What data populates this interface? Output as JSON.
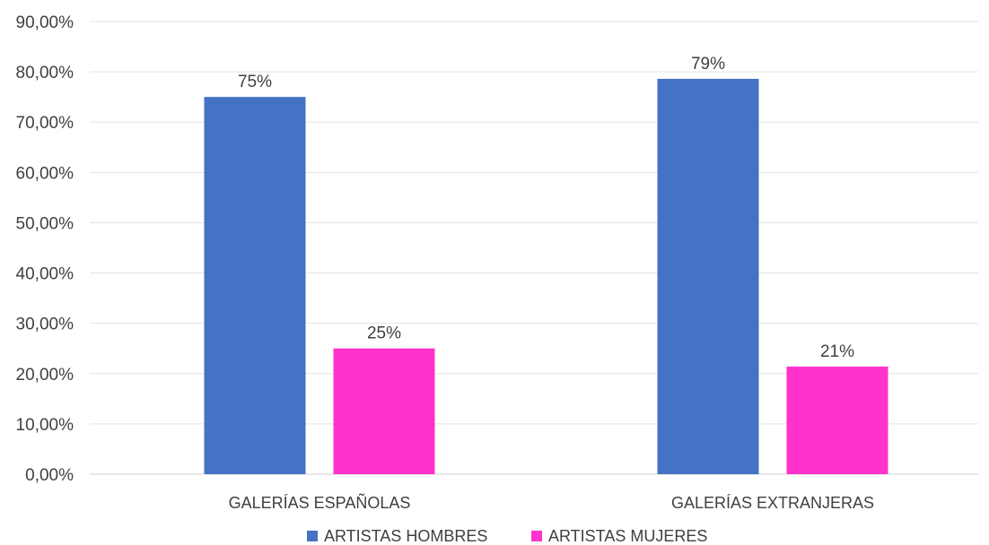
{
  "chart_data": {
    "type": "bar",
    "categories": [
      "GALERÍAS ESPAÑOLAS",
      "GALERÍAS EXTRANJERAS"
    ],
    "series": [
      {
        "name": "ARTISTAS HOMBRES",
        "values": [
          75,
          78.6
        ],
        "labels": [
          "75%",
          "79%"
        ],
        "color": "#4472C4"
      },
      {
        "name": "ARTISTAS MUJERES",
        "values": [
          25,
          21.4
        ],
        "labels": [
          "25%",
          "21%"
        ],
        "color": "#FF33CC"
      }
    ],
    "ylim": [
      0,
      90
    ],
    "yticks": [
      0,
      10,
      20,
      30,
      40,
      50,
      60,
      70,
      80,
      90
    ],
    "ytick_labels": [
      "0,00%",
      "10,00%",
      "20,00%",
      "30,00%",
      "40,00%",
      "50,00%",
      "60,00%",
      "70,00%",
      "80,00%",
      "90,00%"
    ],
    "grid": true,
    "legend_position": "bottom",
    "title": "",
    "xlabel": "",
    "ylabel": ""
  }
}
